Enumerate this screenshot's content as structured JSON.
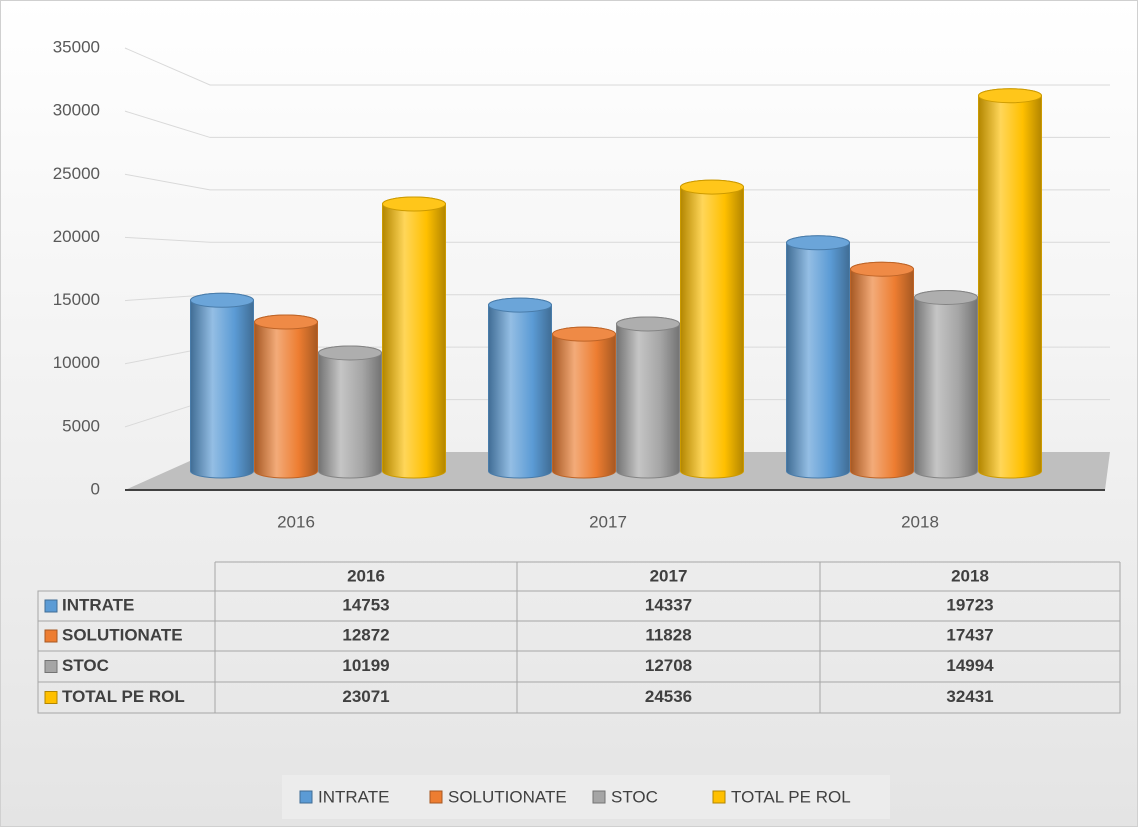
{
  "chart_data": {
    "type": "bar",
    "categories": [
      "2016",
      "2017",
      "2018"
    ],
    "series": [
      {
        "name": "INTRATE",
        "color": "#5b9bd5",
        "values": [
          14753,
          14337,
          19723
        ]
      },
      {
        "name": "SOLUTIONATE",
        "color": "#ed7d31",
        "values": [
          12872,
          11828,
          17437
        ]
      },
      {
        "name": "STOC",
        "color": "#a5a5a5",
        "values": [
          10199,
          12708,
          14994
        ]
      },
      {
        "name": "TOTAL PE ROL",
        "color": "#ffc000",
        "values": [
          23071,
          24536,
          32431
        ]
      }
    ],
    "ylim": [
      0,
      35000
    ],
    "yticks": [
      0,
      5000,
      10000,
      15000,
      20000,
      25000,
      30000,
      35000
    ],
    "grid": true,
    "legend": "bottom"
  }
}
